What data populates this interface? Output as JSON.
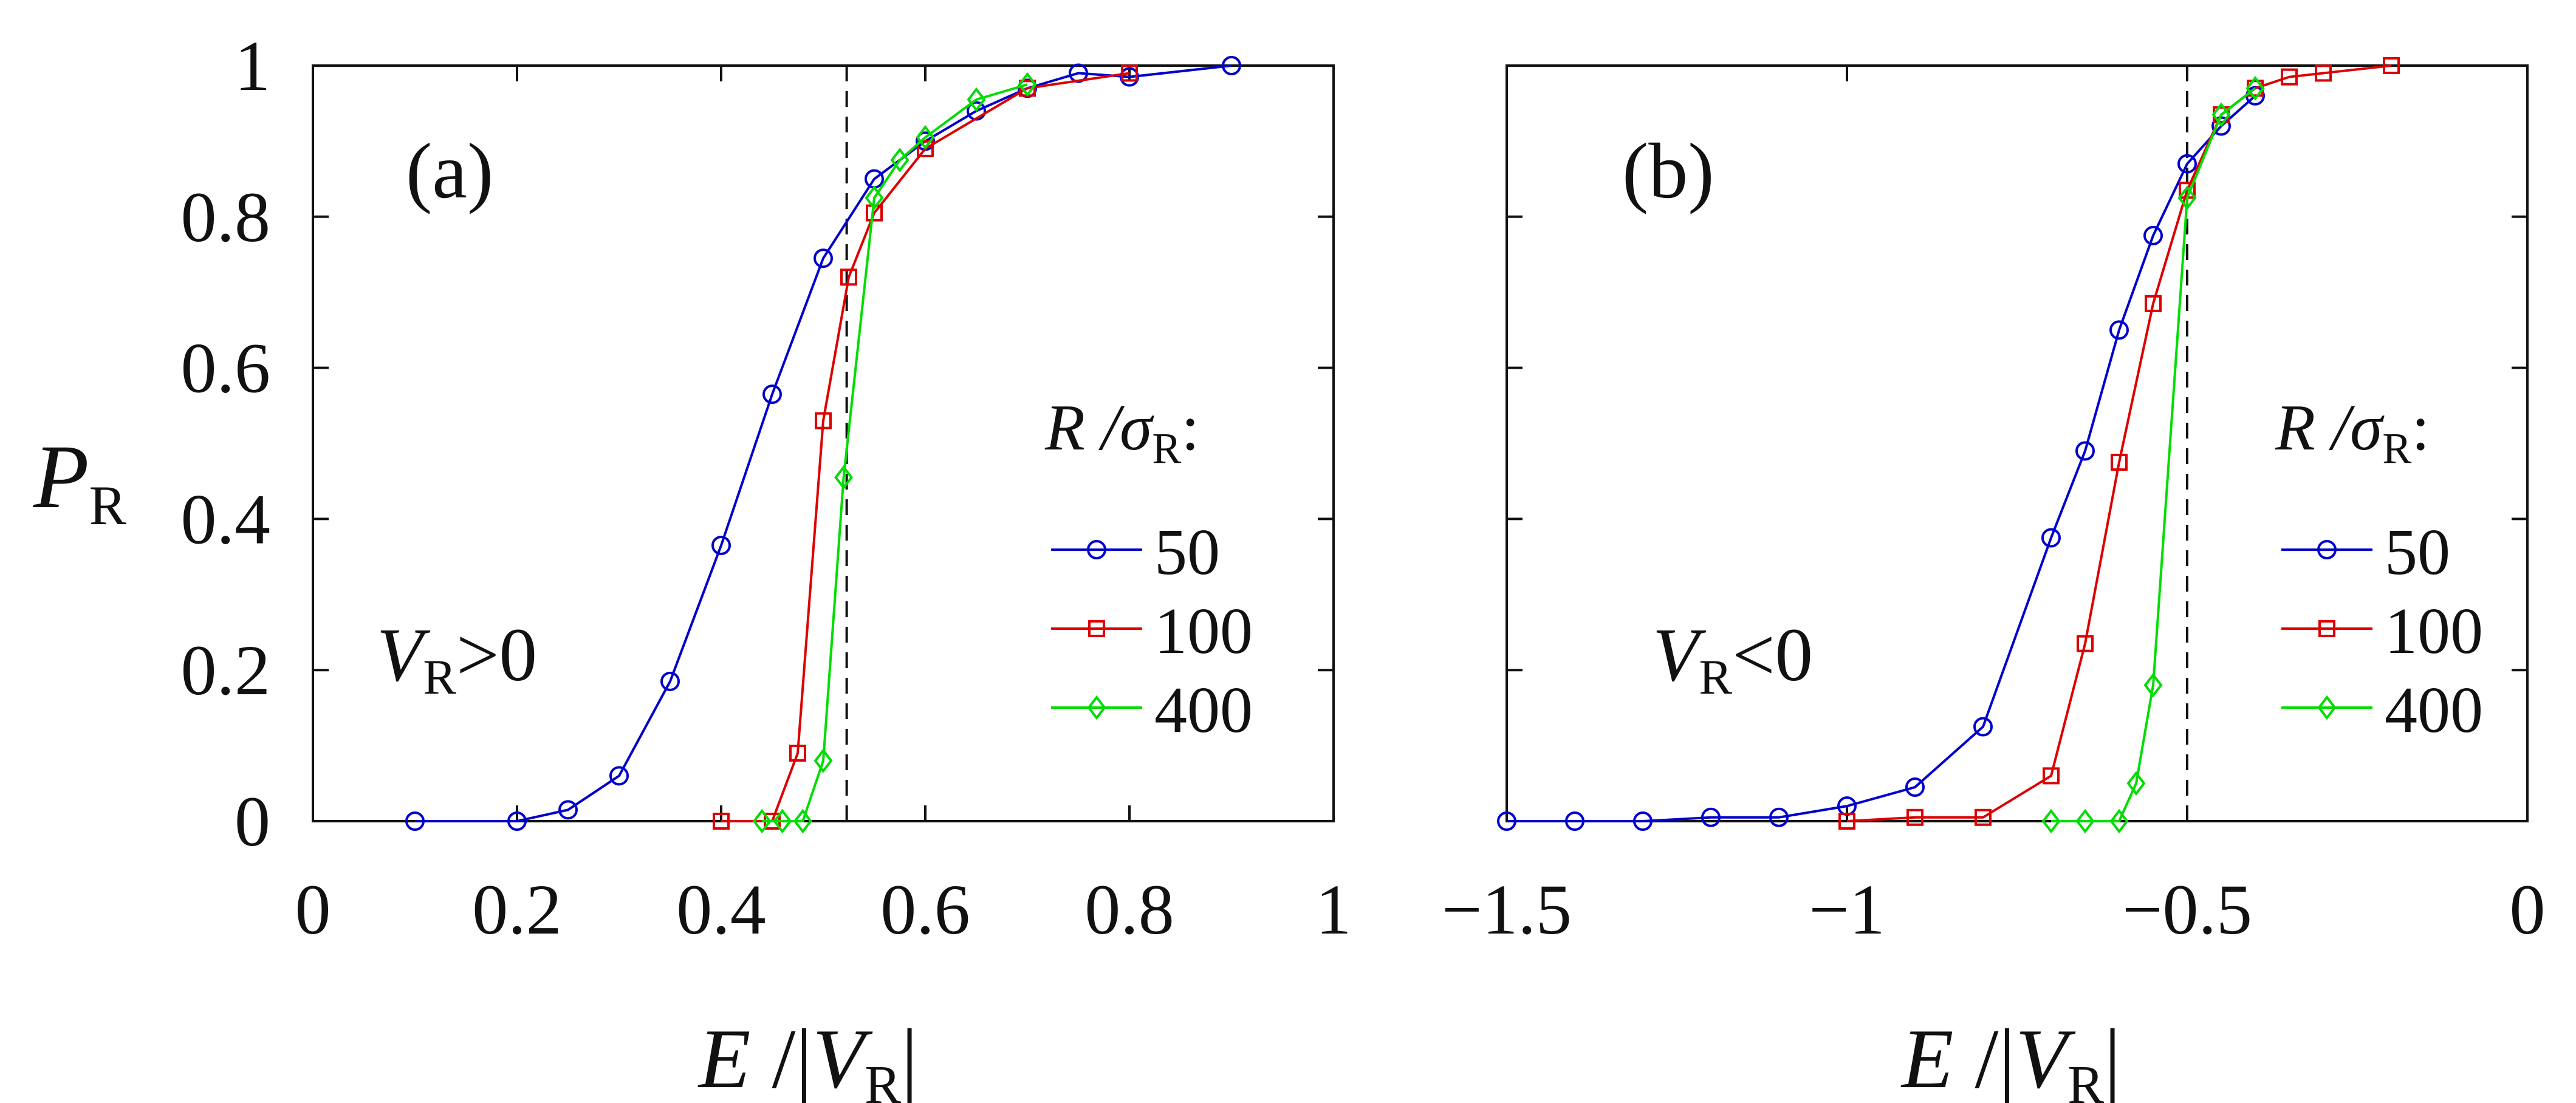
{
  "figure": {
    "ylabel_main": "P",
    "ylabel_sub": "R",
    "xlabel_main": "E",
    "xlabel_sep": " /|",
    "xlabel_v": "V",
    "xlabel_sub": "R",
    "xlabel_end": "|"
  },
  "chart_data": [
    {
      "type": "line",
      "panel_label": "(a)",
      "condition": {
        "v": "V",
        "sub": "R",
        "rel": ">0"
      },
      "title": "",
      "xlabel": "E /|V_R|",
      "ylabel": "P_R",
      "xlim": [
        0,
        1
      ],
      "ylim": [
        0,
        1
      ],
      "xticks": [
        0,
        0.2,
        0.4,
        0.6,
        0.8,
        1
      ],
      "xtick_labels": [
        "0",
        "0.2",
        "0.4",
        "0.6",
        "0.8",
        "1"
      ],
      "yticks": [
        0,
        0.2,
        0.4,
        0.6,
        0.8,
        1
      ],
      "ytick_labels": [
        "0",
        "0.2",
        "0.4",
        "0.6",
        "0.8",
        "1"
      ],
      "dashed_line_x": 0.523,
      "legend": {
        "title": "R /σ",
        "title_sub": "R",
        "title_end": ":",
        "placement": "center-right"
      },
      "series": [
        {
          "name": "50",
          "color": "#0000cc",
          "marker": "circle",
          "x": [
            0.1,
            0.2,
            0.25,
            0.3,
            0.35,
            0.4,
            0.45,
            0.5,
            0.55,
            0.6,
            0.65,
            0.7,
            0.75,
            0.8,
            0.9
          ],
          "y": [
            0.0,
            0.0,
            0.015,
            0.06,
            0.185,
            0.365,
            0.565,
            0.745,
            0.85,
            0.9,
            0.94,
            0.97,
            0.99,
            0.985,
            1.0
          ]
        },
        {
          "name": "100",
          "color": "#dd0000",
          "marker": "square",
          "x": [
            0.4,
            0.45,
            0.475,
            0.5,
            0.525,
            0.55,
            0.6,
            0.7,
            0.8
          ],
          "y": [
            0.0,
            0.0,
            0.09,
            0.53,
            0.72,
            0.805,
            0.89,
            0.97,
            0.99
          ]
        },
        {
          "name": "400",
          "color": "#00dd00",
          "marker": "diamond",
          "x": [
            0.44,
            0.46,
            0.48,
            0.5,
            0.52,
            0.55,
            0.575,
            0.6,
            0.65,
            0.7
          ],
          "y": [
            0.0,
            0.0,
            0.0,
            0.08,
            0.455,
            0.825,
            0.875,
            0.905,
            0.955,
            0.975
          ]
        }
      ]
    },
    {
      "type": "line",
      "panel_label": "(b)",
      "condition": {
        "v": "V",
        "sub": "R",
        "rel": "<0"
      },
      "title": "",
      "xlabel": "E /|V_R|",
      "ylabel": "",
      "xlim": [
        -1.5,
        0
      ],
      "ylim": [
        0,
        1
      ],
      "xticks": [
        -1.5,
        -1,
        -0.5,
        0
      ],
      "xtick_labels": [
        "−1.5",
        "−1",
        "−0.5",
        "0"
      ],
      "yticks": [
        0,
        0.2,
        0.4,
        0.6,
        0.8,
        1
      ],
      "ytick_labels": [],
      "dashed_line_x": -0.5,
      "legend": {
        "title": "R /σ",
        "title_sub": "R",
        "title_end": ":",
        "placement": "center-right"
      },
      "series": [
        {
          "name": "50",
          "color": "#0000cc",
          "marker": "circle",
          "x": [
            -1.5,
            -1.4,
            -1.3,
            -1.2,
            -1.1,
            -1.0,
            -0.9,
            -0.8,
            -0.7,
            -0.65,
            -0.6,
            -0.55,
            -0.5,
            -0.45,
            -0.4
          ],
          "y": [
            0.0,
            0.0,
            0.0,
            0.005,
            0.005,
            0.02,
            0.045,
            0.125,
            0.375,
            0.49,
            0.65,
            0.775,
            0.87,
            0.92,
            0.96
          ]
        },
        {
          "name": "100",
          "color": "#dd0000",
          "marker": "square",
          "x": [
            -1.0,
            -0.9,
            -0.8,
            -0.7,
            -0.65,
            -0.6,
            -0.55,
            -0.5,
            -0.45,
            -0.4,
            -0.35,
            -0.3,
            -0.2
          ],
          "y": [
            0.0,
            0.005,
            0.005,
            0.06,
            0.235,
            0.475,
            0.685,
            0.835,
            0.935,
            0.97,
            0.985,
            0.99,
            1.0
          ]
        },
        {
          "name": "400",
          "color": "#00dd00",
          "marker": "diamond",
          "x": [
            -0.7,
            -0.65,
            -0.6,
            -0.575,
            -0.55,
            -0.5,
            -0.45,
            -0.4
          ],
          "y": [
            0.0,
            0.0,
            0.0,
            0.05,
            0.18,
            0.825,
            0.935,
            0.97
          ]
        }
      ]
    }
  ]
}
